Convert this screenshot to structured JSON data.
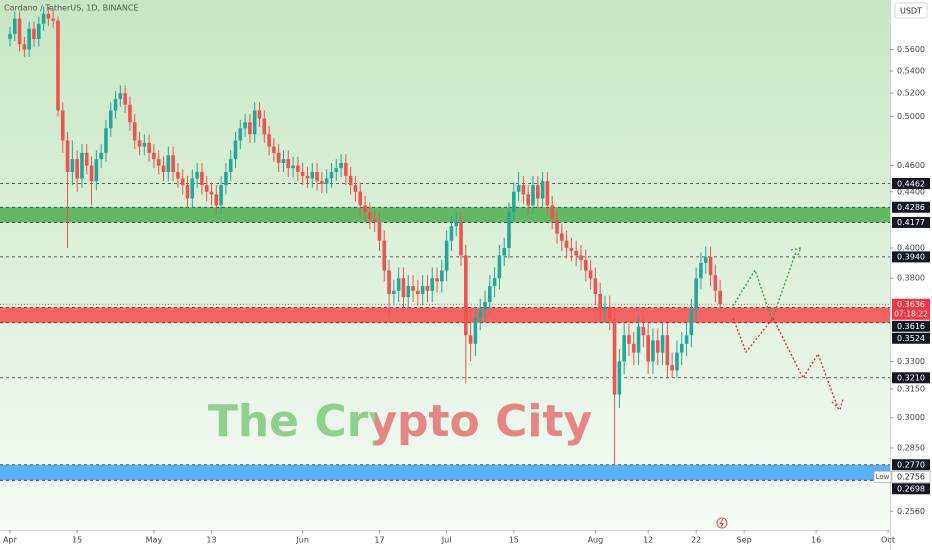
{
  "chart_data": {
    "type": "candlestick",
    "title": "Cardano / TetherUS, 1D, BINANCE",
    "currency": "USDT",
    "watermark": "The Crypto City",
    "ylog": true,
    "up_color": "#26a69a",
    "down_color": "#ef5350",
    "ylim": [
      0.248,
      0.609
    ],
    "yticks": [
      {
        "value": 0.56,
        "label": "0.5600"
      },
      {
        "value": 0.54,
        "label": "0.5400"
      },
      {
        "value": 0.52,
        "label": "0.5200"
      },
      {
        "value": 0.5,
        "label": "0.5000"
      },
      {
        "value": 0.46,
        "label": "0.4600"
      },
      {
        "value": 0.44,
        "label": "0.4400"
      },
      {
        "value": 0.4,
        "label": "0.4000"
      },
      {
        "value": 0.38,
        "label": "0.3800"
      },
      {
        "value": 0.33,
        "label": "0.3300"
      },
      {
        "value": 0.315,
        "label": "0.3150"
      },
      {
        "value": 0.3,
        "label": "0.3000"
      },
      {
        "value": 0.285,
        "label": "0.2850"
      },
      {
        "value": 0.256,
        "label": "0.2560"
      }
    ],
    "xlim": [
      -2.08,
      183.4
    ],
    "xticks": [
      {
        "value": 0,
        "label": "Apr"
      },
      {
        "value": 14,
        "label": "15"
      },
      {
        "value": 30,
        "label": "May"
      },
      {
        "value": 42,
        "label": "13"
      },
      {
        "value": 61,
        "label": "Jun"
      },
      {
        "value": 77,
        "label": "17"
      },
      {
        "value": 91,
        "label": "Jul"
      },
      {
        "value": 105,
        "label": "15"
      },
      {
        "value": 122,
        "label": "Aug"
      },
      {
        "value": 133,
        "label": "12"
      },
      {
        "value": 143,
        "label": "22"
      },
      {
        "value": 153,
        "label": "Sep"
      },
      {
        "value": 168,
        "label": "16"
      },
      {
        "value": 183,
        "label": "Oct"
      }
    ],
    "levels": [
      {
        "value": 0.4462,
        "label": "0.4462",
        "dashed": true
      },
      {
        "value": 0.394,
        "label": "0.3940",
        "dashed": true
      },
      {
        "value": 0.321,
        "label": "0.3210",
        "dashed": true
      }
    ],
    "zones": [
      {
        "color": "#4caf50",
        "high": {
          "value": 0.4286,
          "label": "0.4286"
        },
        "low": {
          "value": 0.4177,
          "label": "0.4177"
        }
      },
      {
        "color": "#f44b4b",
        "high": {
          "value": 0.3616,
          "label": "0.3616"
        },
        "low": {
          "value": 0.3524,
          "label": "0.3524"
        }
      },
      {
        "color": "#42a5f5",
        "high": {
          "value": 0.277,
          "label": "0.2770"
        },
        "low": {
          "value": 0.2698,
          "label": "0.2698"
        }
      }
    ],
    "current_price": {
      "value": 0.3636,
      "label": "0.3636",
      "countdown": "07:18:22",
      "color": "#f23645"
    },
    "low_marker": {
      "value": 0.2756,
      "label": "0.2756",
      "name": "Low"
    },
    "ohlc": [
      [
        0.57,
        0.582,
        0.563,
        0.575
      ],
      [
        0.575,
        0.597,
        0.568,
        0.59
      ],
      [
        0.59,
        0.597,
        0.558,
        0.565
      ],
      [
        0.565,
        0.572,
        0.553,
        0.56
      ],
      [
        0.56,
        0.587,
        0.553,
        0.58
      ],
      [
        0.58,
        0.587,
        0.563,
        0.57
      ],
      [
        0.57,
        0.592,
        0.563,
        0.585
      ],
      [
        0.585,
        0.602,
        0.578,
        0.595
      ],
      [
        0.595,
        0.602,
        0.583,
        0.59
      ],
      [
        0.59,
        0.6,
        0.581,
        0.588
      ],
      [
        0.588,
        0.592,
        0.5,
        0.505
      ],
      [
        0.505,
        0.512,
        0.47,
        0.48
      ],
      [
        0.48,
        0.487,
        0.4,
        0.455
      ],
      [
        0.455,
        0.48,
        0.445,
        0.465
      ],
      [
        0.465,
        0.472,
        0.44,
        0.45
      ],
      [
        0.45,
        0.477,
        0.443,
        0.47
      ],
      [
        0.47,
        0.477,
        0.453,
        0.46
      ],
      [
        0.46,
        0.467,
        0.43,
        0.448
      ],
      [
        0.448,
        0.472,
        0.441,
        0.465
      ],
      [
        0.465,
        0.477,
        0.458,
        0.47
      ],
      [
        0.47,
        0.497,
        0.463,
        0.49
      ],
      [
        0.49,
        0.512,
        0.483,
        0.505
      ],
      [
        0.505,
        0.522,
        0.498,
        0.515
      ],
      [
        0.515,
        0.527,
        0.508,
        0.52
      ],
      [
        0.52,
        0.527,
        0.503,
        0.51
      ],
      [
        0.51,
        0.517,
        0.488,
        0.495
      ],
      [
        0.495,
        0.502,
        0.473,
        0.48
      ],
      [
        0.48,
        0.487,
        0.468,
        0.475
      ],
      [
        0.475,
        0.485,
        0.468,
        0.478
      ],
      [
        0.478,
        0.485,
        0.463,
        0.47
      ],
      [
        0.47,
        0.477,
        0.458,
        0.465
      ],
      [
        0.465,
        0.472,
        0.453,
        0.46
      ],
      [
        0.46,
        0.467,
        0.448,
        0.455
      ],
      [
        0.455,
        0.475,
        0.448,
        0.468
      ],
      [
        0.468,
        0.475,
        0.448,
        0.455
      ],
      [
        0.455,
        0.462,
        0.443,
        0.45
      ],
      [
        0.45,
        0.457,
        0.438,
        0.445
      ],
      [
        0.445,
        0.452,
        0.428,
        0.435
      ],
      [
        0.435,
        0.457,
        0.428,
        0.45
      ],
      [
        0.45,
        0.462,
        0.443,
        0.455
      ],
      [
        0.455,
        0.462,
        0.438,
        0.445
      ],
      [
        0.445,
        0.452,
        0.433,
        0.44
      ],
      [
        0.44,
        0.447,
        0.43,
        0.438
      ],
      [
        0.438,
        0.445,
        0.423,
        0.43
      ],
      [
        0.43,
        0.452,
        0.423,
        0.445
      ],
      [
        0.445,
        0.462,
        0.438,
        0.455
      ],
      [
        0.455,
        0.472,
        0.448,
        0.465
      ],
      [
        0.465,
        0.487,
        0.458,
        0.48
      ],
      [
        0.48,
        0.497,
        0.473,
        0.49
      ],
      [
        0.49,
        0.502,
        0.483,
        0.495
      ],
      [
        0.495,
        0.502,
        0.478,
        0.485
      ],
      [
        0.485,
        0.512,
        0.478,
        0.505
      ],
      [
        0.505,
        0.512,
        0.491,
        0.498
      ],
      [
        0.498,
        0.505,
        0.478,
        0.485
      ],
      [
        0.485,
        0.492,
        0.468,
        0.475
      ],
      [
        0.475,
        0.482,
        0.463,
        0.47
      ],
      [
        0.47,
        0.477,
        0.455,
        0.462
      ],
      [
        0.462,
        0.472,
        0.455,
        0.465
      ],
      [
        0.465,
        0.472,
        0.451,
        0.458
      ],
      [
        0.458,
        0.467,
        0.451,
        0.46
      ],
      [
        0.46,
        0.467,
        0.448,
        0.455
      ],
      [
        0.455,
        0.462,
        0.445,
        0.452
      ],
      [
        0.452,
        0.459,
        0.443,
        0.45
      ],
      [
        0.45,
        0.462,
        0.443,
        0.455
      ],
      [
        0.455,
        0.462,
        0.441,
        0.448
      ],
      [
        0.448,
        0.455,
        0.439,
        0.446
      ],
      [
        0.446,
        0.457,
        0.439,
        0.45
      ],
      [
        0.45,
        0.462,
        0.443,
        0.455
      ],
      [
        0.455,
        0.465,
        0.448,
        0.458
      ],
      [
        0.458,
        0.469,
        0.451,
        0.462
      ],
      [
        0.462,
        0.469,
        0.445,
        0.452
      ],
      [
        0.452,
        0.459,
        0.438,
        0.445
      ],
      [
        0.445,
        0.452,
        0.433,
        0.44
      ],
      [
        0.44,
        0.447,
        0.423,
        0.43
      ],
      [
        0.43,
        0.437,
        0.418,
        0.425
      ],
      [
        0.425,
        0.432,
        0.413,
        0.42
      ],
      [
        0.42,
        0.427,
        0.411,
        0.418
      ],
      [
        0.418,
        0.425,
        0.398,
        0.405
      ],
      [
        0.405,
        0.412,
        0.378,
        0.385
      ],
      [
        0.385,
        0.392,
        0.355,
        0.37
      ],
      [
        0.37,
        0.379,
        0.363,
        0.372
      ],
      [
        0.372,
        0.387,
        0.365,
        0.38
      ],
      [
        0.38,
        0.387,
        0.361,
        0.368
      ],
      [
        0.368,
        0.382,
        0.361,
        0.375
      ],
      [
        0.375,
        0.382,
        0.365,
        0.372
      ],
      [
        0.372,
        0.379,
        0.363,
        0.37
      ],
      [
        0.37,
        0.382,
        0.363,
        0.375
      ],
      [
        0.375,
        0.382,
        0.365,
        0.372
      ],
      [
        0.372,
        0.387,
        0.365,
        0.38
      ],
      [
        0.38,
        0.387,
        0.371,
        0.378
      ],
      [
        0.378,
        0.392,
        0.371,
        0.385
      ],
      [
        0.385,
        0.412,
        0.378,
        0.405
      ],
      [
        0.405,
        0.422,
        0.398,
        0.415
      ],
      [
        0.415,
        0.425,
        0.408,
        0.418
      ],
      [
        0.418,
        0.425,
        0.388,
        0.395
      ],
      [
        0.395,
        0.402,
        0.318,
        0.345
      ],
      [
        0.345,
        0.36,
        0.33,
        0.34
      ],
      [
        0.34,
        0.362,
        0.333,
        0.355
      ],
      [
        0.355,
        0.367,
        0.348,
        0.36
      ],
      [
        0.36,
        0.372,
        0.353,
        0.365
      ],
      [
        0.365,
        0.382,
        0.358,
        0.375
      ],
      [
        0.375,
        0.387,
        0.368,
        0.38
      ],
      [
        0.38,
        0.402,
        0.373,
        0.395
      ],
      [
        0.395,
        0.407,
        0.388,
        0.4
      ],
      [
        0.4,
        0.432,
        0.393,
        0.425
      ],
      [
        0.425,
        0.447,
        0.418,
        0.44
      ],
      [
        0.44,
        0.455,
        0.433,
        0.445
      ],
      [
        0.445,
        0.452,
        0.431,
        0.438
      ],
      [
        0.438,
        0.445,
        0.423,
        0.43
      ],
      [
        0.43,
        0.452,
        0.423,
        0.445
      ],
      [
        0.445,
        0.452,
        0.428,
        0.435
      ],
      [
        0.435,
        0.455,
        0.428,
        0.448
      ],
      [
        0.448,
        0.455,
        0.423,
        0.43
      ],
      [
        0.43,
        0.437,
        0.413,
        0.42
      ],
      [
        0.42,
        0.427,
        0.403,
        0.41
      ],
      [
        0.41,
        0.417,
        0.398,
        0.405
      ],
      [
        0.405,
        0.412,
        0.393,
        0.4
      ],
      [
        0.4,
        0.407,
        0.391,
        0.398
      ],
      [
        0.398,
        0.405,
        0.388,
        0.395
      ],
      [
        0.395,
        0.402,
        0.385,
        0.392
      ],
      [
        0.392,
        0.399,
        0.378,
        0.385
      ],
      [
        0.385,
        0.392,
        0.373,
        0.38
      ],
      [
        0.38,
        0.387,
        0.363,
        0.37
      ],
      [
        0.37,
        0.377,
        0.353,
        0.36
      ],
      [
        0.36,
        0.369,
        0.353,
        0.362
      ],
      [
        0.362,
        0.369,
        0.348,
        0.355
      ],
      [
        0.355,
        0.362,
        0.277,
        0.312
      ],
      [
        0.312,
        0.337,
        0.305,
        0.33
      ],
      [
        0.33,
        0.352,
        0.323,
        0.345
      ],
      [
        0.345,
        0.352,
        0.333,
        0.34
      ],
      [
        0.34,
        0.347,
        0.328,
        0.335
      ],
      [
        0.335,
        0.357,
        0.328,
        0.35
      ],
      [
        0.35,
        0.357,
        0.338,
        0.345
      ],
      [
        0.345,
        0.352,
        0.323,
        0.33
      ],
      [
        0.33,
        0.349,
        0.323,
        0.342
      ],
      [
        0.342,
        0.349,
        0.328,
        0.335
      ],
      [
        0.335,
        0.352,
        0.328,
        0.345
      ],
      [
        0.345,
        0.352,
        0.321,
        0.328
      ],
      [
        0.328,
        0.335,
        0.321,
        0.325
      ],
      [
        0.325,
        0.342,
        0.321,
        0.335
      ],
      [
        0.335,
        0.347,
        0.328,
        0.34
      ],
      [
        0.34,
        0.352,
        0.333,
        0.345
      ],
      [
        0.345,
        0.367,
        0.338,
        0.36
      ],
      [
        0.36,
        0.387,
        0.353,
        0.38
      ],
      [
        0.38,
        0.397,
        0.373,
        0.39
      ],
      [
        0.39,
        0.401,
        0.383,
        0.394
      ],
      [
        0.394,
        0.401,
        0.375,
        0.382
      ],
      [
        0.382,
        0.389,
        0.365,
        0.372
      ],
      [
        0.372,
        0.379,
        0.36,
        0.3636
      ]
    ]
  }
}
